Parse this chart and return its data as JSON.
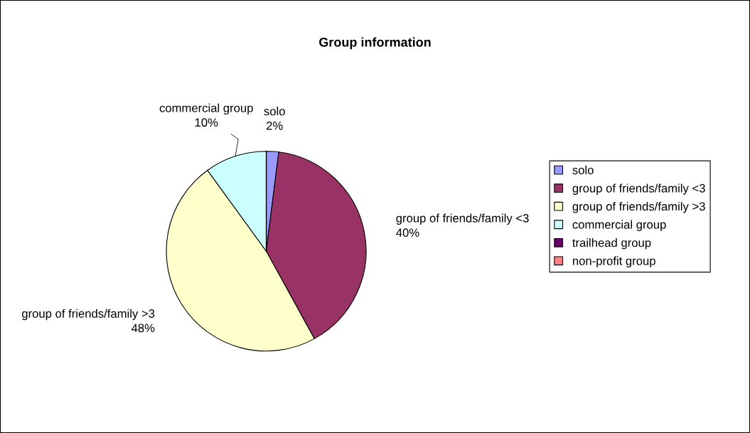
{
  "chart_data": {
    "type": "pie",
    "title": "Group information",
    "categories": [
      "solo",
      "group of friends/family <3",
      "group of friends/family >3",
      "commercial group",
      "trailhead group",
      "non-profit group"
    ],
    "values": [
      2,
      40,
      48,
      10,
      0,
      0
    ],
    "colors": [
      "#9999ff",
      "#993366",
      "#ffffcc",
      "#ccffff",
      "#660066",
      "#ff8080"
    ],
    "value_labels": [
      "2%",
      "40%",
      "48%",
      "10%",
      null,
      null
    ],
    "legend": "right"
  }
}
